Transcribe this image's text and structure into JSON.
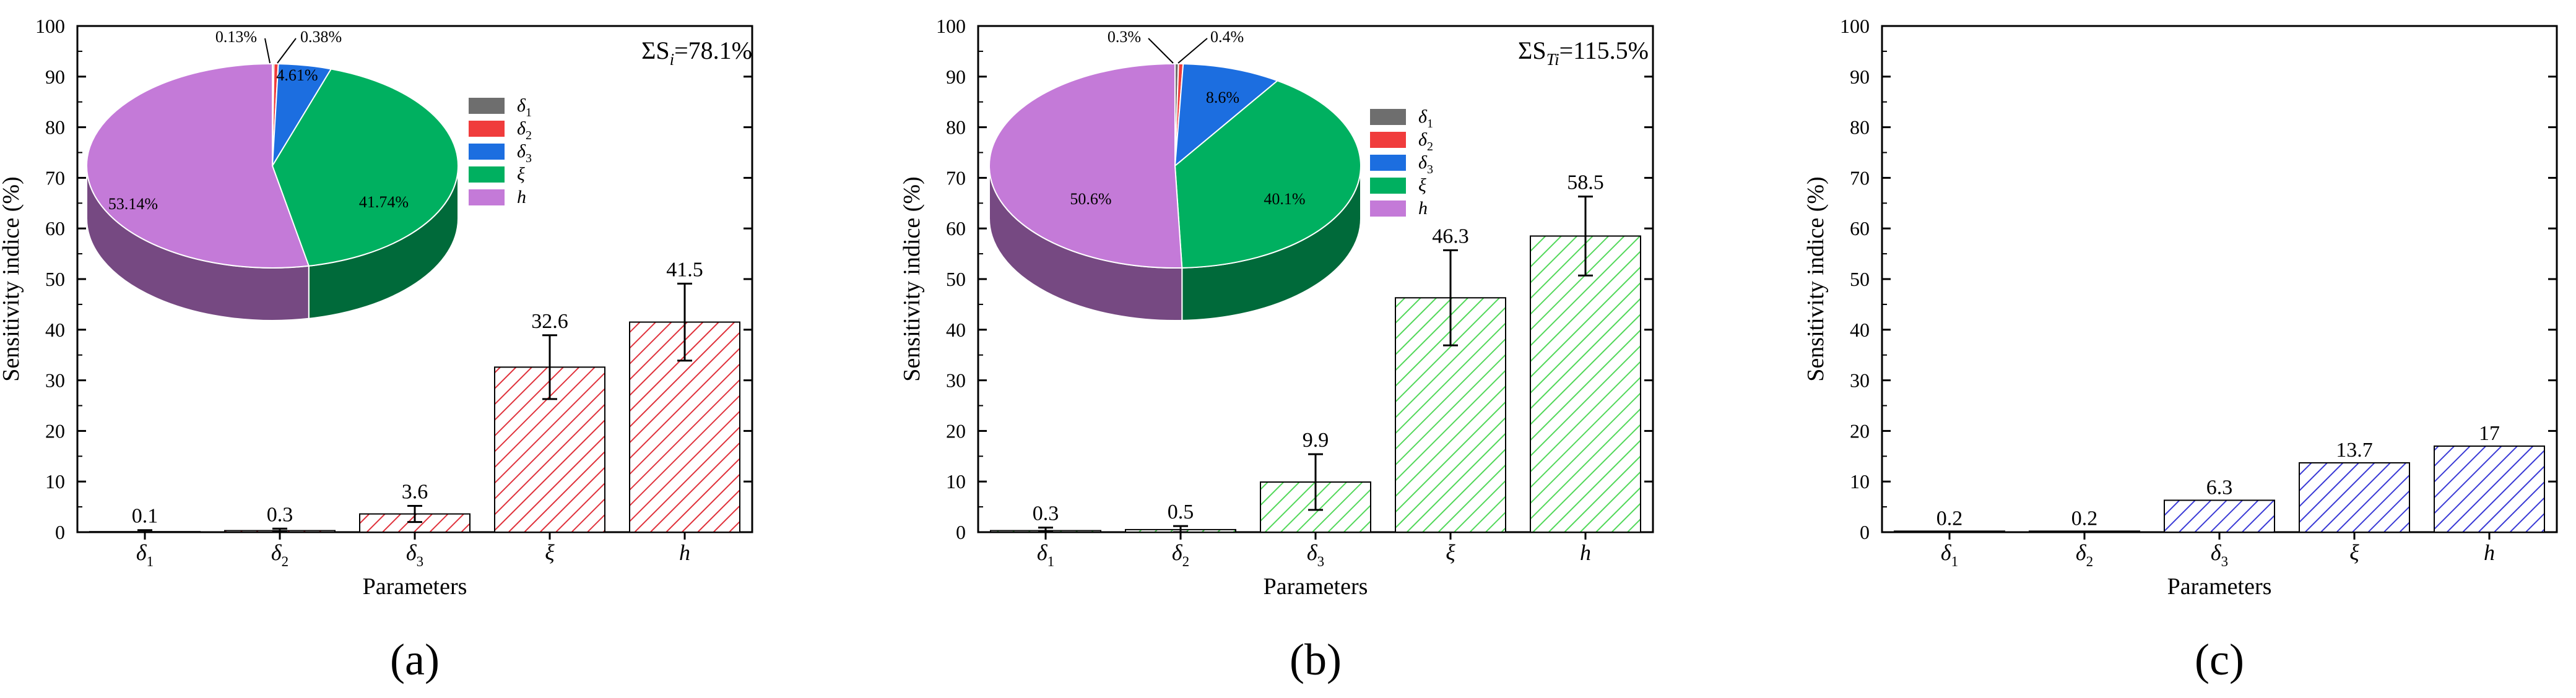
{
  "colors": {
    "axis": "#000000",
    "red_hatch": "#e0323c",
    "green_hatch": "#52d85a",
    "blue_hatch": "#3a3ad6",
    "pie_delta1": "#6e6e6e",
    "pie_delta2": "#f03c3c",
    "pie_delta3": "#1c6ee0",
    "pie_xi": "#00b060",
    "pie_h": "#c47ad8"
  },
  "chart_data": [
    {
      "panel": "(a)",
      "type": "bar",
      "xlabel": "Parameters",
      "ylabel": "Sensitivity  indice (%)",
      "ylim": [
        0,
        100
      ],
      "yticks": [
        0,
        10,
        20,
        30,
        40,
        50,
        60,
        70,
        80,
        90,
        100
      ],
      "categories": [
        {
          "base": "δ",
          "sub": "1"
        },
        {
          "base": "δ",
          "sub": "2"
        },
        {
          "base": "δ",
          "sub": "3"
        },
        {
          "base": "ξ",
          "sub": ""
        },
        {
          "base": "h",
          "sub": ""
        }
      ],
      "values": [
        0.1,
        0.3,
        3.6,
        32.6,
        41.5
      ],
      "value_labels": [
        "0.1",
        "0.3",
        "3.6",
        "32.6",
        "41.5"
      ],
      "errors": [
        0.3,
        0.4,
        1.6,
        6.3,
        7.6
      ],
      "hatch": "red_hatch",
      "annotation": {
        "prefix": "ΣS",
        "sub": "i",
        "suffix": "=78.1%"
      },
      "pie": {
        "labels": [
          {
            "base": "δ",
            "sub": "1"
          },
          {
            "base": "δ",
            "sub": "2"
          },
          {
            "base": "δ",
            "sub": "3"
          },
          {
            "base": "ξ",
            "sub": ""
          },
          {
            "base": "h",
            "sub": ""
          }
        ],
        "values": [
          0.13,
          0.38,
          4.61,
          41.74,
          53.14
        ],
        "value_labels": [
          "0.13%",
          "0.38%",
          "4.61%",
          "41.74%",
          "53.14%"
        ]
      }
    },
    {
      "panel": "(b)",
      "type": "bar",
      "xlabel": "Parameters",
      "ylabel": "Sensitivity  indice (%)",
      "ylim": [
        0,
        100
      ],
      "yticks": [
        0,
        10,
        20,
        30,
        40,
        50,
        60,
        70,
        80,
        90,
        100
      ],
      "categories": [
        {
          "base": "δ",
          "sub": "1"
        },
        {
          "base": "δ",
          "sub": "2"
        },
        {
          "base": "δ",
          "sub": "3"
        },
        {
          "base": "ξ",
          "sub": ""
        },
        {
          "base": "h",
          "sub": ""
        }
      ],
      "values": [
        0.3,
        0.5,
        9.9,
        46.3,
        58.5
      ],
      "value_labels": [
        "0.3",
        "0.5",
        "9.9",
        "46.3",
        "58.5"
      ],
      "errors": [
        0.6,
        0.7,
        5.5,
        9.4,
        7.8
      ],
      "hatch": "green_hatch",
      "annotation": {
        "prefix": "ΣS",
        "sub": "Ti",
        "suffix": "=115.5%"
      },
      "pie": {
        "labels": [
          {
            "base": "δ",
            "sub": "1"
          },
          {
            "base": "δ",
            "sub": "2"
          },
          {
            "base": "δ",
            "sub": "3"
          },
          {
            "base": "ξ",
            "sub": ""
          },
          {
            "base": "h",
            "sub": ""
          }
        ],
        "values": [
          0.3,
          0.4,
          8.6,
          40.1,
          50.6
        ],
        "value_labels": [
          "0.3%",
          "0.4%",
          "8.6%",
          "40.1%",
          "50.6%"
        ]
      }
    },
    {
      "panel": "(c)",
      "type": "bar",
      "xlabel": "Parameters",
      "ylabel": "Sensitivity  indice (%)",
      "ylim": [
        0,
        100
      ],
      "yticks": [
        0,
        10,
        20,
        30,
        40,
        50,
        60,
        70,
        80,
        90,
        100
      ],
      "categories": [
        {
          "base": "δ",
          "sub": "1"
        },
        {
          "base": "δ",
          "sub": "2"
        },
        {
          "base": "δ",
          "sub": "3"
        },
        {
          "base": "ξ",
          "sub": ""
        },
        {
          "base": "h",
          "sub": ""
        }
      ],
      "values": [
        0.2,
        0.2,
        6.3,
        13.7,
        17
      ],
      "value_labels": [
        "0.2",
        "0.2",
        "6.3",
        "13.7",
        "17"
      ],
      "errors": null,
      "hatch": "blue_hatch",
      "annotation": null,
      "pie": null
    }
  ]
}
